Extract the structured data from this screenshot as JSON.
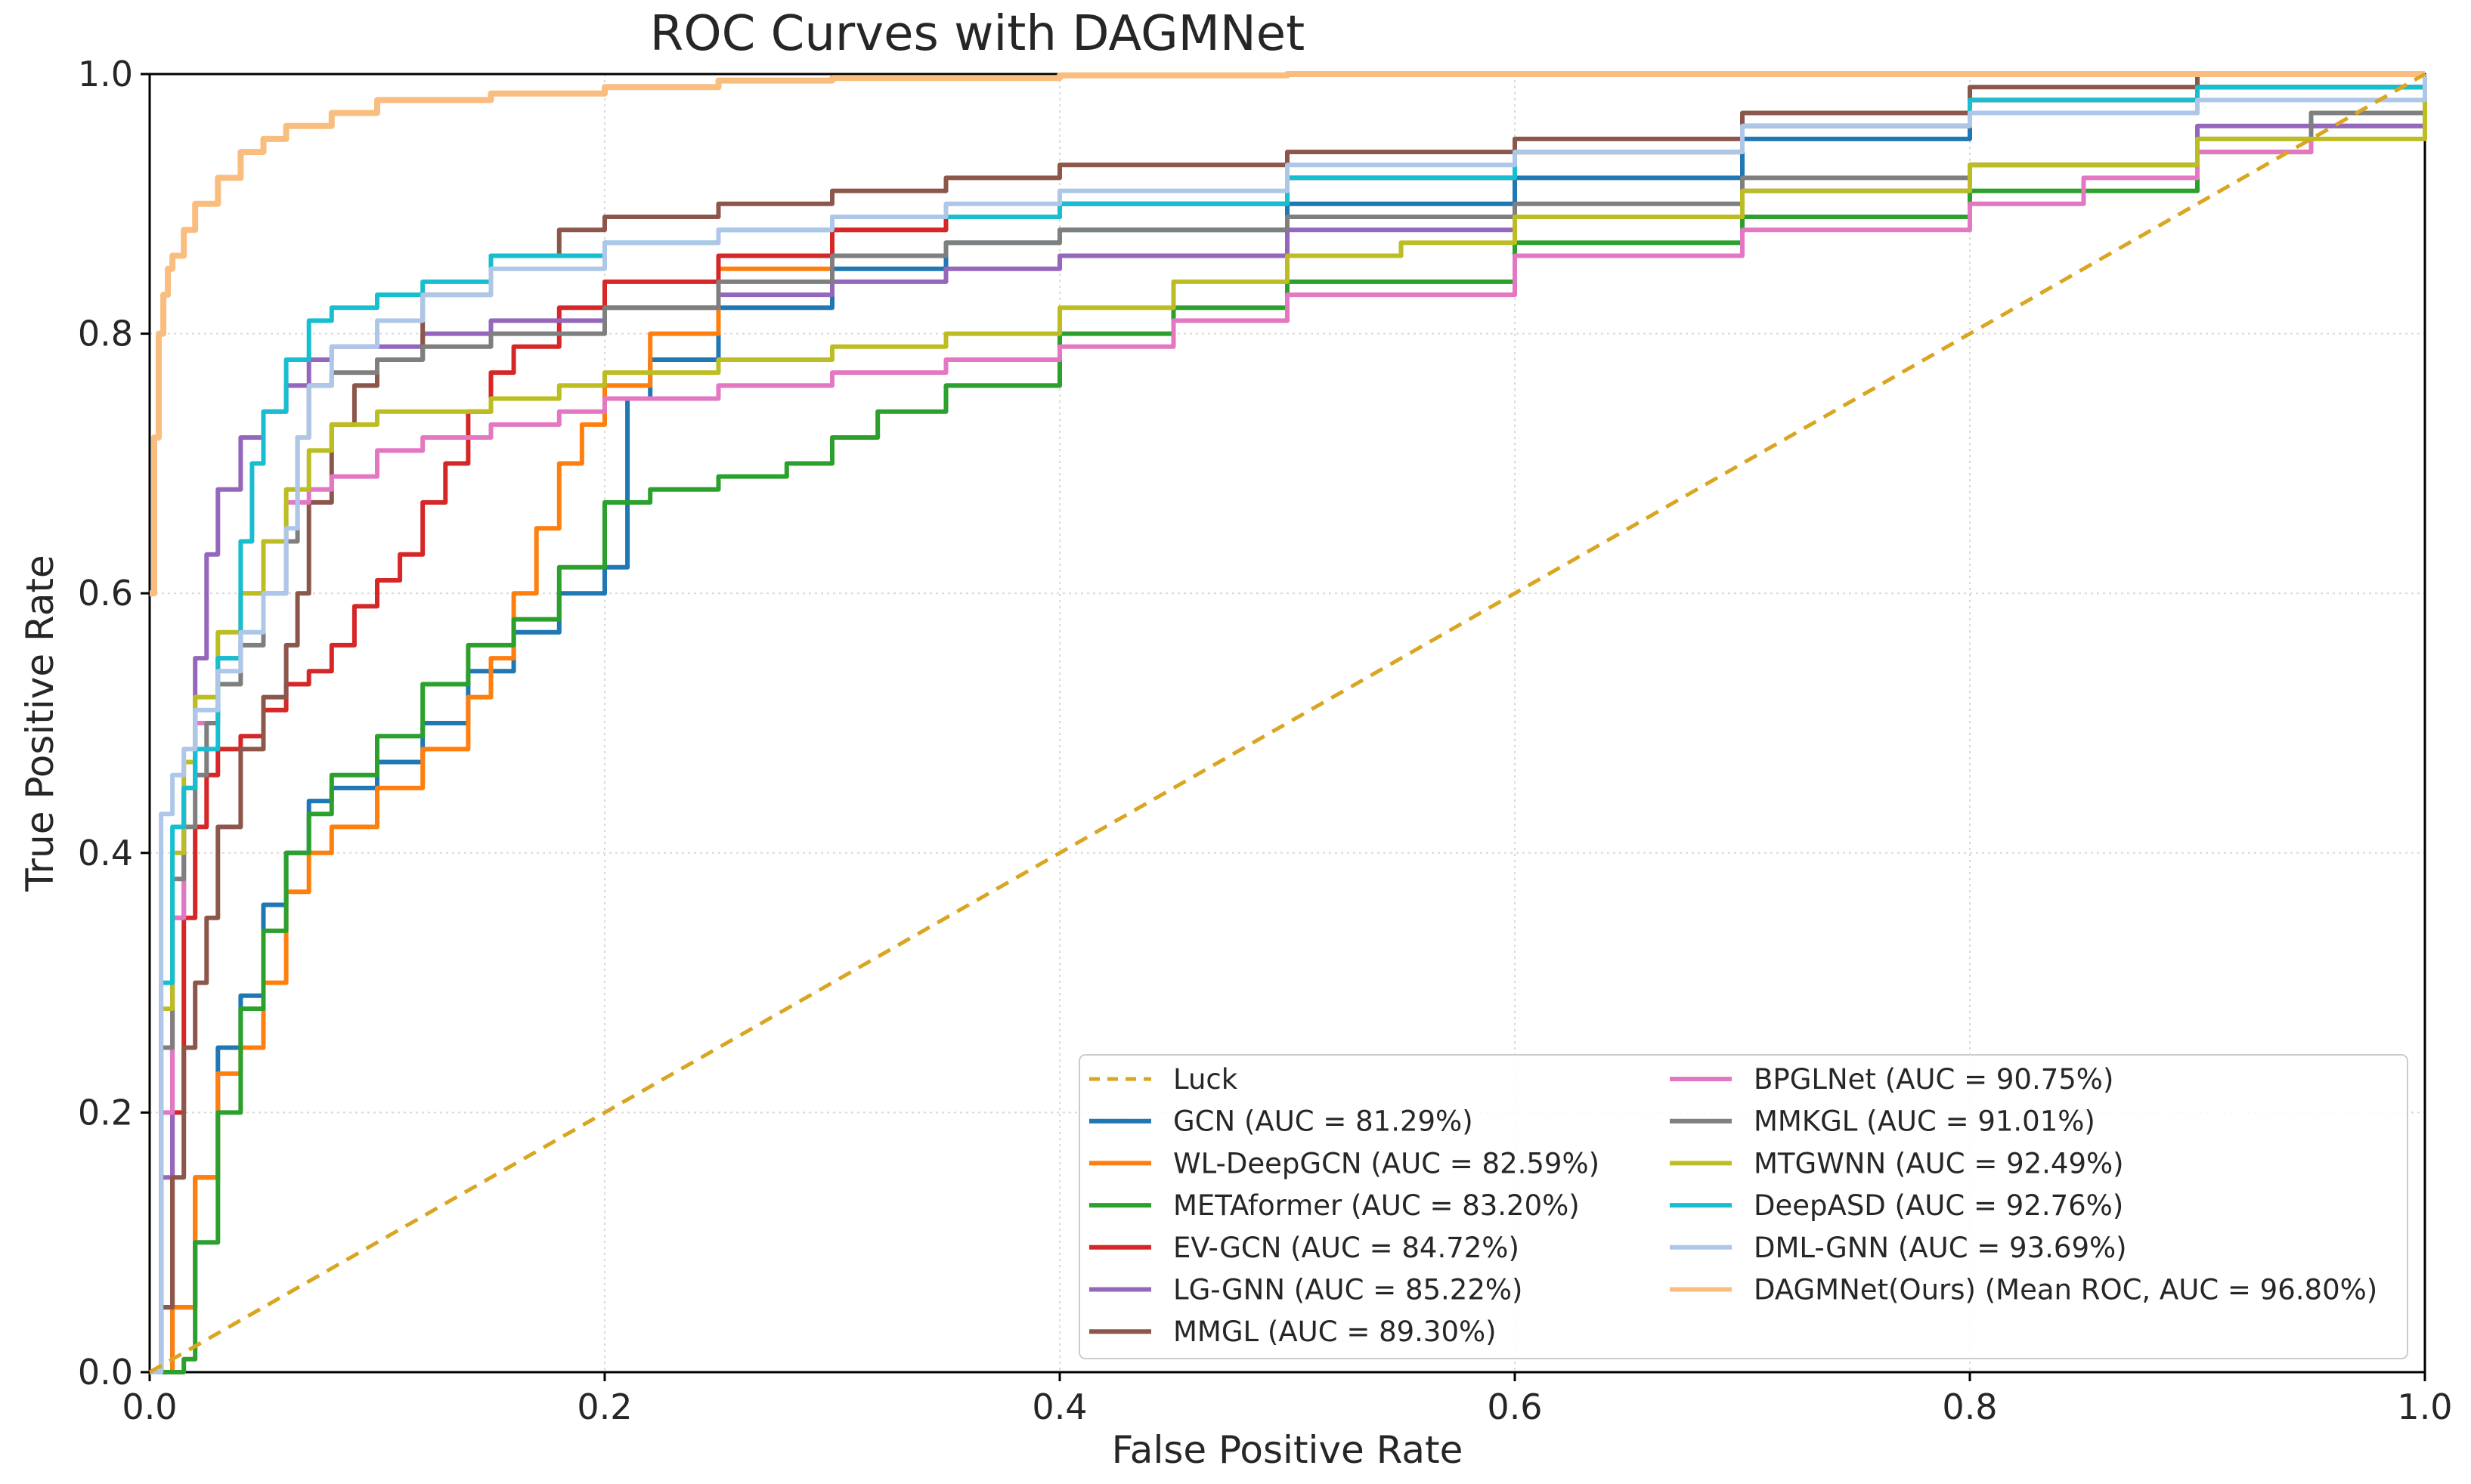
{
  "chart_data": {
    "type": "line",
    "title": "ROC Curves with DAGMNet",
    "xlabel": "False Positive Rate",
    "ylabel": "True Positive Rate",
    "xlim": [
      0,
      1
    ],
    "ylim": [
      0,
      1
    ],
    "xticks": [
      "0.0",
      "0.2",
      "0.4",
      "0.6",
      "0.8",
      "1.0"
    ],
    "yticks": [
      "0.0",
      "0.2",
      "0.4",
      "0.6",
      "0.8",
      "1.0"
    ],
    "grid": true,
    "legend_position": "lower-right",
    "series": [
      {
        "name": "Luck",
        "color": "#DAA520",
        "dashed": true,
        "x": [
          0,
          1
        ],
        "y": [
          0,
          1
        ]
      },
      {
        "name": "GCN (AUC = 81.29%)",
        "color": "#1f77b4",
        "x": [
          0,
          0.01,
          0.02,
          0.03,
          0.04,
          0.05,
          0.06,
          0.07,
          0.08,
          0.1,
          0.12,
          0.14,
          0.16,
          0.18,
          0.2,
          0.21,
          0.22,
          0.25,
          0.3,
          0.35,
          0.4,
          0.5,
          0.6,
          0.7,
          0.8,
          0.9,
          1.0
        ],
        "y": [
          0,
          0.05,
          0.15,
          0.25,
          0.29,
          0.36,
          0.4,
          0.44,
          0.45,
          0.47,
          0.5,
          0.54,
          0.57,
          0.6,
          0.62,
          0.75,
          0.78,
          0.82,
          0.85,
          0.87,
          0.88,
          0.9,
          0.92,
          0.95,
          0.97,
          0.99,
          1.0
        ]
      },
      {
        "name": "WL-DeepGCN (AUC = 82.59%)",
        "color": "#ff7f0e",
        "x": [
          0,
          0.01,
          0.02,
          0.03,
          0.04,
          0.05,
          0.06,
          0.07,
          0.08,
          0.1,
          0.12,
          0.14,
          0.15,
          0.16,
          0.17,
          0.18,
          0.19,
          0.2,
          0.22,
          0.25,
          0.3,
          0.35,
          0.4,
          0.5,
          0.6,
          0.7,
          0.8,
          0.9,
          1.0
        ],
        "y": [
          0,
          0.05,
          0.15,
          0.23,
          0.25,
          0.3,
          0.37,
          0.4,
          0.42,
          0.45,
          0.48,
          0.52,
          0.55,
          0.6,
          0.65,
          0.7,
          0.73,
          0.76,
          0.8,
          0.85,
          0.88,
          0.89,
          0.9,
          0.92,
          0.94,
          0.96,
          0.98,
          0.99,
          1.0
        ]
      },
      {
        "name": "METAformer (AUC = 83.20%)",
        "color": "#2ca02c",
        "x": [
          0,
          0.015,
          0.02,
          0.03,
          0.04,
          0.05,
          0.06,
          0.07,
          0.08,
          0.1,
          0.12,
          0.14,
          0.16,
          0.18,
          0.2,
          0.22,
          0.25,
          0.28,
          0.3,
          0.32,
          0.35,
          0.4,
          0.45,
          0.5,
          0.6,
          0.7,
          0.8,
          0.9,
          0.95,
          1.0
        ],
        "y": [
          0,
          0.01,
          0.1,
          0.2,
          0.28,
          0.34,
          0.4,
          0.43,
          0.46,
          0.49,
          0.53,
          0.56,
          0.58,
          0.62,
          0.67,
          0.68,
          0.69,
          0.7,
          0.72,
          0.74,
          0.76,
          0.8,
          0.82,
          0.84,
          0.87,
          0.89,
          0.91,
          0.94,
          0.96,
          0.99
        ]
      },
      {
        "name": "EV-GCN (AUC = 84.72%)",
        "color": "#d62728",
        "x": [
          0,
          0.005,
          0.01,
          0.015,
          0.02,
          0.025,
          0.03,
          0.04,
          0.05,
          0.06,
          0.07,
          0.08,
          0.09,
          0.1,
          0.11,
          0.12,
          0.13,
          0.14,
          0.15,
          0.16,
          0.18,
          0.2,
          0.25,
          0.3,
          0.35,
          0.4,
          0.5,
          0.6,
          0.7,
          0.8,
          0.9,
          1.0
        ],
        "y": [
          0,
          0.05,
          0.2,
          0.35,
          0.42,
          0.46,
          0.48,
          0.49,
          0.51,
          0.53,
          0.54,
          0.56,
          0.59,
          0.61,
          0.63,
          0.67,
          0.7,
          0.74,
          0.77,
          0.79,
          0.82,
          0.84,
          0.86,
          0.88,
          0.89,
          0.9,
          0.92,
          0.94,
          0.96,
          0.98,
          0.99,
          1.0
        ]
      },
      {
        "name": "LG-GNN (AUC = 85.22%)",
        "color": "#9467bd",
        "x": [
          0,
          0.005,
          0.01,
          0.015,
          0.02,
          0.025,
          0.03,
          0.04,
          0.05,
          0.06,
          0.07,
          0.08,
          0.1,
          0.12,
          0.15,
          0.2,
          0.25,
          0.3,
          0.35,
          0.4,
          0.5,
          0.6,
          0.7,
          0.8,
          0.9,
          1.0
        ],
        "y": [
          0,
          0.15,
          0.35,
          0.45,
          0.55,
          0.63,
          0.68,
          0.72,
          0.74,
          0.76,
          0.78,
          0.79,
          0.79,
          0.8,
          0.81,
          0.82,
          0.83,
          0.84,
          0.85,
          0.86,
          0.88,
          0.89,
          0.91,
          0.93,
          0.96,
          1.0
        ]
      },
      {
        "name": "MMGL (AUC = 89.30%)",
        "color": "#8c564b",
        "x": [
          0,
          0.005,
          0.01,
          0.015,
          0.02,
          0.025,
          0.03,
          0.04,
          0.05,
          0.06,
          0.065,
          0.07,
          0.08,
          0.09,
          0.1,
          0.12,
          0.15,
          0.18,
          0.2,
          0.25,
          0.3,
          0.35,
          0.4,
          0.5,
          0.6,
          0.7,
          0.8,
          0.9,
          1.0
        ],
        "y": [
          0,
          0.05,
          0.15,
          0.25,
          0.3,
          0.35,
          0.42,
          0.48,
          0.52,
          0.56,
          0.6,
          0.67,
          0.73,
          0.76,
          0.78,
          0.83,
          0.86,
          0.88,
          0.89,
          0.9,
          0.91,
          0.92,
          0.93,
          0.94,
          0.95,
          0.97,
          0.99,
          1.0,
          1.0
        ]
      },
      {
        "name": "BPGLNet (AUC = 90.75%)",
        "color": "#e377c2",
        "x": [
          0,
          0.005,
          0.01,
          0.015,
          0.02,
          0.03,
          0.04,
          0.05,
          0.06,
          0.07,
          0.08,
          0.1,
          0.12,
          0.15,
          0.18,
          0.2,
          0.25,
          0.3,
          0.35,
          0.4,
          0.45,
          0.5,
          0.6,
          0.7,
          0.8,
          0.85,
          0.9,
          0.95,
          1.0
        ],
        "y": [
          0,
          0.2,
          0.35,
          0.45,
          0.5,
          0.55,
          0.6,
          0.64,
          0.67,
          0.68,
          0.69,
          0.71,
          0.72,
          0.73,
          0.74,
          0.75,
          0.76,
          0.77,
          0.78,
          0.79,
          0.81,
          0.83,
          0.86,
          0.88,
          0.9,
          0.92,
          0.94,
          0.97,
          1.0
        ]
      },
      {
        "name": "MMKGL (AUC = 91.01%)",
        "color": "#7f7f7f",
        "x": [
          0,
          0.005,
          0.01,
          0.015,
          0.02,
          0.025,
          0.03,
          0.04,
          0.05,
          0.06,
          0.065,
          0.07,
          0.08,
          0.1,
          0.12,
          0.15,
          0.2,
          0.25,
          0.3,
          0.35,
          0.4,
          0.5,
          0.6,
          0.7,
          0.8,
          0.9,
          0.95,
          1.0
        ],
        "y": [
          0,
          0.25,
          0.38,
          0.42,
          0.46,
          0.5,
          0.53,
          0.56,
          0.6,
          0.64,
          0.72,
          0.76,
          0.77,
          0.78,
          0.79,
          0.8,
          0.82,
          0.84,
          0.86,
          0.87,
          0.88,
          0.89,
          0.9,
          0.92,
          0.93,
          0.95,
          0.97,
          1.0
        ]
      },
      {
        "name": "MTGWNN (AUC = 92.49%)",
        "color": "#bcbd22",
        "x": [
          0,
          0.005,
          0.01,
          0.015,
          0.02,
          0.03,
          0.04,
          0.05,
          0.06,
          0.07,
          0.08,
          0.1,
          0.12,
          0.15,
          0.18,
          0.2,
          0.25,
          0.3,
          0.35,
          0.4,
          0.45,
          0.5,
          0.55,
          0.6,
          0.7,
          0.8,
          0.9,
          1.0
        ],
        "y": [
          0,
          0.28,
          0.4,
          0.47,
          0.52,
          0.57,
          0.6,
          0.64,
          0.68,
          0.71,
          0.73,
          0.74,
          0.74,
          0.75,
          0.76,
          0.77,
          0.78,
          0.79,
          0.8,
          0.82,
          0.84,
          0.86,
          0.87,
          0.89,
          0.91,
          0.93,
          0.95,
          1.0
        ]
      },
      {
        "name": "DeepASD (AUC = 92.76%)",
        "color": "#17becf",
        "x": [
          0,
          0.005,
          0.01,
          0.015,
          0.02,
          0.03,
          0.04,
          0.045,
          0.05,
          0.06,
          0.07,
          0.08,
          0.1,
          0.12,
          0.15,
          0.2,
          0.25,
          0.3,
          0.35,
          0.4,
          0.5,
          0.6,
          0.7,
          0.8,
          0.9,
          1.0
        ],
        "y": [
          0,
          0.3,
          0.42,
          0.45,
          0.48,
          0.55,
          0.64,
          0.7,
          0.74,
          0.78,
          0.81,
          0.82,
          0.83,
          0.84,
          0.86,
          0.87,
          0.88,
          0.89,
          0.89,
          0.9,
          0.92,
          0.94,
          0.96,
          0.98,
          0.99,
          1.0
        ]
      },
      {
        "name": "DML-GNN (AUC = 93.69%)",
        "color": "#aec7e8",
        "x": [
          0,
          0.005,
          0.01,
          0.015,
          0.02,
          0.03,
          0.04,
          0.05,
          0.06,
          0.065,
          0.07,
          0.08,
          0.1,
          0.12,
          0.15,
          0.2,
          0.25,
          0.3,
          0.35,
          0.4,
          0.5,
          0.6,
          0.7,
          0.8,
          0.9,
          1.0
        ],
        "y": [
          0,
          0.43,
          0.46,
          0.48,
          0.51,
          0.54,
          0.57,
          0.6,
          0.65,
          0.72,
          0.76,
          0.79,
          0.81,
          0.83,
          0.85,
          0.87,
          0.88,
          0.89,
          0.9,
          0.91,
          0.93,
          0.94,
          0.96,
          0.97,
          0.98,
          1.0
        ]
      },
      {
        "name": "DAGMNet(Ours) (Mean ROC, AUC = 96.80%)",
        "color": "#f9bd7f",
        "x": [
          0,
          0.002,
          0.004,
          0.006,
          0.008,
          0.01,
          0.015,
          0.02,
          0.03,
          0.04,
          0.05,
          0.06,
          0.08,
          0.1,
          0.15,
          0.2,
          0.25,
          0.3,
          0.4,
          0.5,
          0.6,
          0.8,
          1.0
        ],
        "y": [
          0.6,
          0.72,
          0.8,
          0.83,
          0.85,
          0.86,
          0.88,
          0.9,
          0.92,
          0.94,
          0.95,
          0.96,
          0.97,
          0.98,
          0.985,
          0.99,
          0.995,
          0.997,
          0.999,
          1.0,
          1.0,
          1.0,
          1.0
        ]
      }
    ]
  }
}
